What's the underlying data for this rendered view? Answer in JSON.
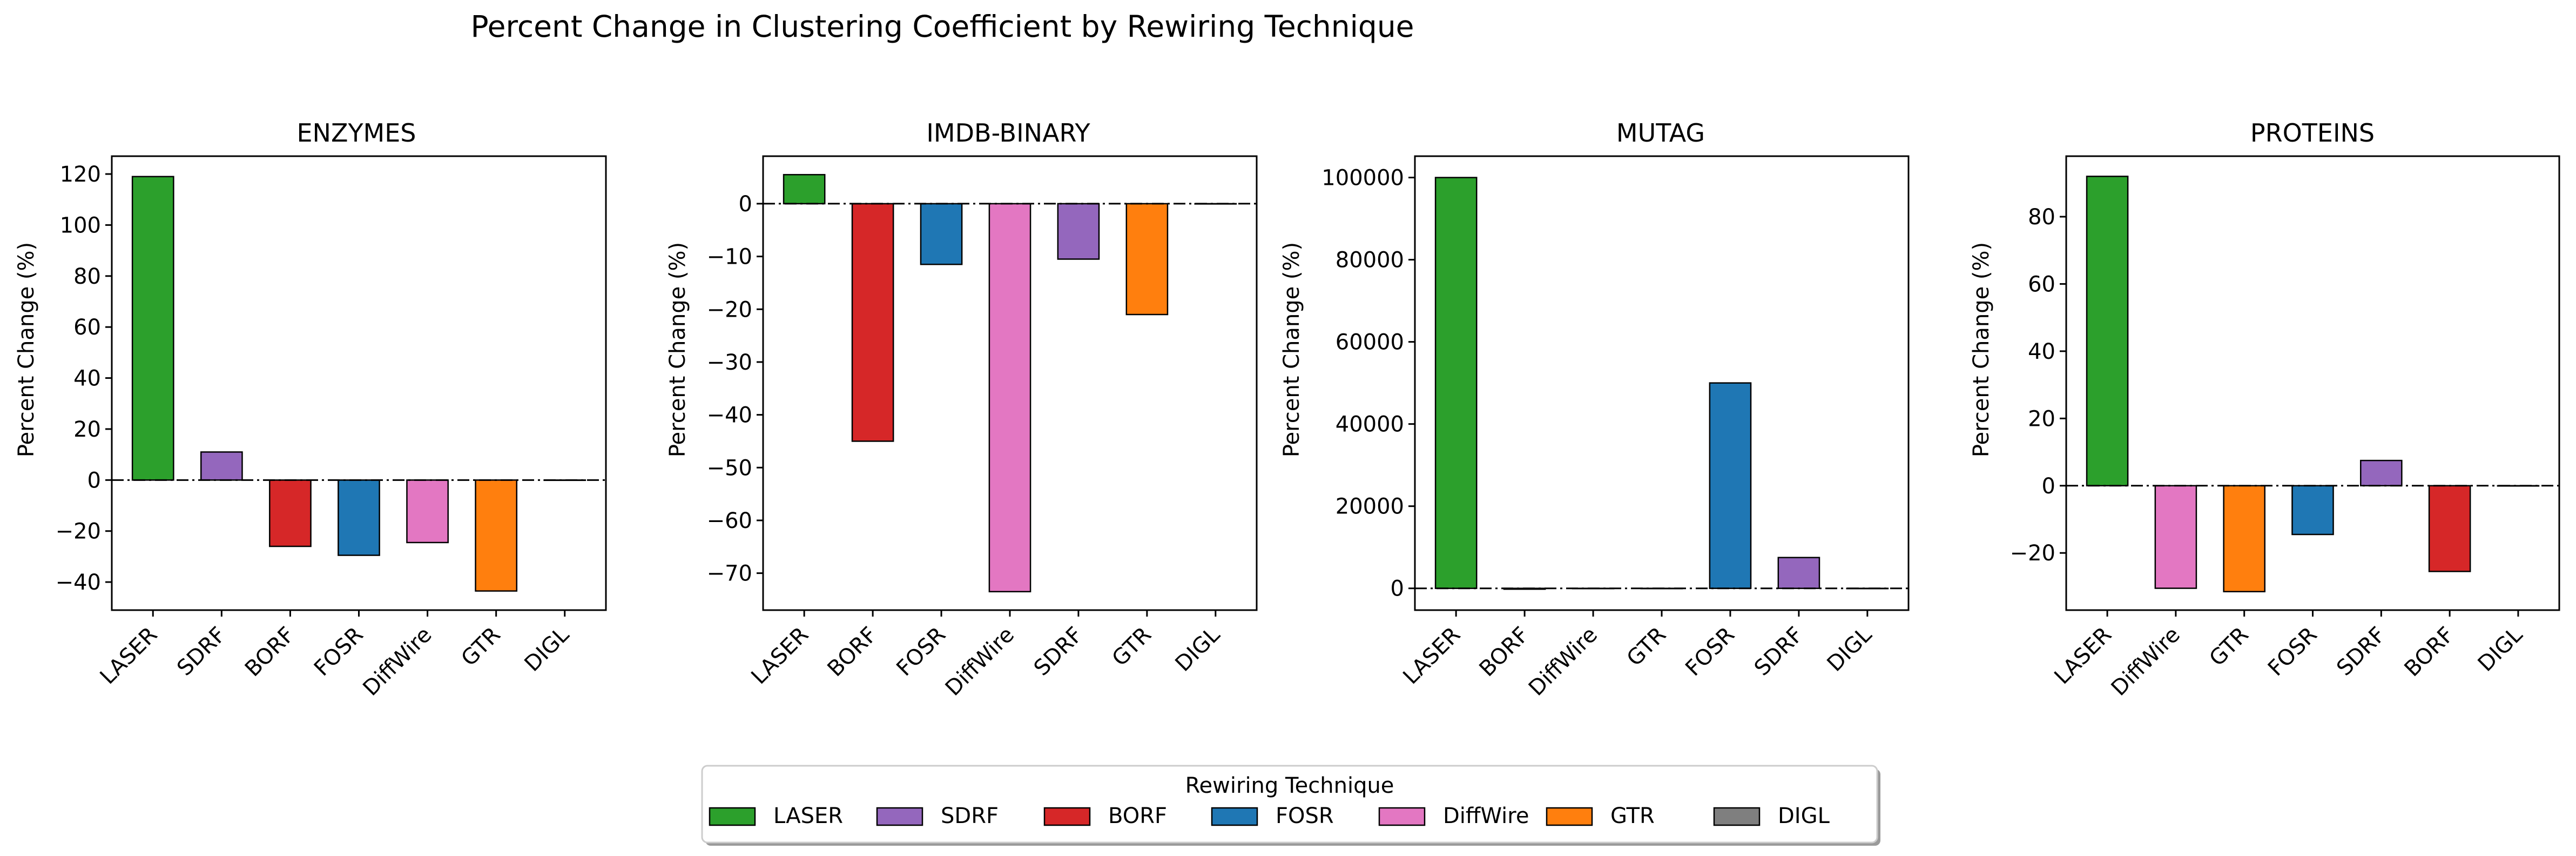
{
  "figure": {
    "title": "Percent Change in Clustering Coefficient by Rewiring Technique"
  },
  "colors": {
    "LASER": "#2ca02c",
    "SDRF": "#9467bd",
    "BORF": "#d62728",
    "FOSR": "#1f77b4",
    "DiffWire": "#e377c2",
    "GTR": "#ff7f0e",
    "DIGL": "#7f7f7f"
  },
  "legend": {
    "title": "Rewiring Technique",
    "items": [
      "LASER",
      "SDRF",
      "BORF",
      "FOSR",
      "DiffWire",
      "GTR",
      "DIGL"
    ]
  },
  "chart_data": [
    {
      "type": "bar",
      "title": "ENZYMES",
      "xlabel": "",
      "ylabel": "Percent Change (%)",
      "categories": [
        "LASER",
        "SDRF",
        "BORF",
        "FOSR",
        "DiffWire",
        "GTR",
        "DIGL"
      ],
      "values": [
        119,
        11,
        -26,
        -29.5,
        -24.5,
        -43.5,
        0
      ],
      "ylim": [
        -51,
        127
      ],
      "yticks": [
        -40,
        -20,
        0,
        20,
        40,
        60,
        80,
        100,
        120
      ]
    },
    {
      "type": "bar",
      "title": "IMDB-BINARY",
      "xlabel": "",
      "ylabel": "Percent Change (%)",
      "categories": [
        "LASER",
        "BORF",
        "FOSR",
        "DiffWire",
        "SDRF",
        "GTR",
        "DIGL"
      ],
      "values": [
        5.5,
        -45,
        -11.5,
        -73.5,
        -10.5,
        -21,
        0
      ],
      "ylim": [
        -77,
        9
      ],
      "yticks": [
        -70,
        -60,
        -50,
        -40,
        -30,
        -20,
        -10,
        0
      ]
    },
    {
      "type": "bar",
      "title": "MUTAG",
      "xlabel": "",
      "ylabel": "Percent Change (%)",
      "categories": [
        "LASER",
        "BORF",
        "DiffWire",
        "GTR",
        "FOSR",
        "SDRF",
        "DIGL"
      ],
      "values": [
        100000,
        -200,
        0,
        0,
        50000,
        7500,
        0
      ],
      "ylim": [
        -5300,
        105200
      ],
      "yticks": [
        0,
        20000,
        40000,
        60000,
        80000,
        100000
      ]
    },
    {
      "type": "bar",
      "title": "PROTEINS",
      "xlabel": "",
      "ylabel": "Percent Change (%)",
      "categories": [
        "LASER",
        "DiffWire",
        "GTR",
        "FOSR",
        "SDRF",
        "BORF",
        "DIGL"
      ],
      "values": [
        92,
        -30.5,
        -31.5,
        -14.5,
        7.5,
        -25.5,
        0
      ],
      "ylim": [
        -37,
        98
      ],
      "yticks": [
        -20,
        0,
        20,
        40,
        60,
        80
      ]
    }
  ]
}
